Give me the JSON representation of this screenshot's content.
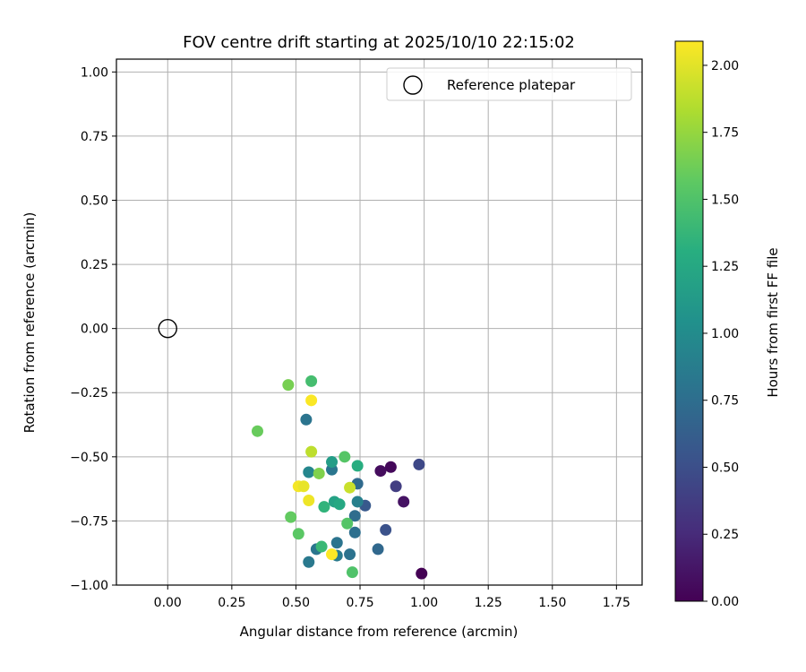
{
  "chart_data": {
    "type": "scatter",
    "title": "FOV centre drift starting at 2025/10/10 22:15:02",
    "xlabel": "Angular distance from reference (arcmin)",
    "ylabel": "Rotation from reference (arcmin)",
    "xlim": [
      -0.2,
      1.85
    ],
    "ylim": [
      -1.0,
      1.05
    ],
    "xticks": [
      0.0,
      0.25,
      0.5,
      0.75,
      1.0,
      1.25,
      1.5,
      1.75
    ],
    "xtick_labels": [
      "0.00",
      "0.25",
      "0.50",
      "0.75",
      "1.00",
      "1.25",
      "1.50",
      "1.75"
    ],
    "yticks": [
      1.0,
      0.75,
      0.5,
      0.25,
      0.0,
      -0.25,
      -0.5,
      -0.75,
      -1.0
    ],
    "ytick_labels": [
      "1.00",
      "0.75",
      "0.50",
      "0.25",
      "0.00",
      "−0.25",
      "−0.50",
      "−0.75",
      "−1.00"
    ],
    "grid": true,
    "legend": {
      "position": "top-right",
      "entries": [
        "Reference platepar"
      ]
    },
    "reference_point": {
      "x": 0.0,
      "y": 0.0
    },
    "colorbar": {
      "label": "Hours from first FF file",
      "min": 0.0,
      "max": 2.09,
      "ticks": [
        0.0,
        0.25,
        0.5,
        0.75,
        1.0,
        1.25,
        1.5,
        1.75,
        2.0
      ],
      "tick_labels": [
        "0.00",
        "0.25",
        "0.50",
        "0.75",
        "1.00",
        "1.25",
        "1.50",
        "1.75",
        "2.00"
      ],
      "colormap": "viridis"
    },
    "points": [
      {
        "x": 0.99,
        "y": -0.955,
        "h": 0.0
      },
      {
        "x": 0.87,
        "y": -0.54,
        "h": 0.04
      },
      {
        "x": 0.83,
        "y": -0.555,
        "h": 0.07
      },
      {
        "x": 0.92,
        "y": -0.675,
        "h": 0.1
      },
      {
        "x": 0.89,
        "y": -0.615,
        "h": 0.38
      },
      {
        "x": 0.98,
        "y": -0.53,
        "h": 0.45
      },
      {
        "x": 0.85,
        "y": -0.785,
        "h": 0.52
      },
      {
        "x": 0.77,
        "y": -0.69,
        "h": 0.58
      },
      {
        "x": 0.82,
        "y": -0.86,
        "h": 0.7
      },
      {
        "x": 0.74,
        "y": -0.605,
        "h": 0.72
      },
      {
        "x": 0.73,
        "y": -0.73,
        "h": 0.74
      },
      {
        "x": 0.73,
        "y": -0.795,
        "h": 0.76
      },
      {
        "x": 0.71,
        "y": -0.88,
        "h": 0.78
      },
      {
        "x": 0.66,
        "y": -0.835,
        "h": 0.8
      },
      {
        "x": 0.54,
        "y": -0.355,
        "h": 0.8
      },
      {
        "x": 0.64,
        "y": -0.55,
        "h": 0.82
      },
      {
        "x": 0.58,
        "y": -0.86,
        "h": 0.82
      },
      {
        "x": 0.55,
        "y": -0.91,
        "h": 0.84
      },
      {
        "x": 0.66,
        "y": -0.885,
        "h": 0.85
      },
      {
        "x": 0.74,
        "y": -0.675,
        "h": 0.9
      },
      {
        "x": 0.55,
        "y": -0.56,
        "h": 0.95
      },
      {
        "x": 0.64,
        "y": -0.52,
        "h": 1.15
      },
      {
        "x": 0.65,
        "y": -0.675,
        "h": 1.2
      },
      {
        "x": 0.67,
        "y": -0.685,
        "h": 1.25
      },
      {
        "x": 0.74,
        "y": -0.535,
        "h": 1.3
      },
      {
        "x": 0.61,
        "y": -0.695,
        "h": 1.35
      },
      {
        "x": 0.6,
        "y": -0.85,
        "h": 1.4
      },
      {
        "x": 0.56,
        "y": -0.205,
        "h": 1.45
      },
      {
        "x": 0.72,
        "y": -0.95,
        "h": 1.5
      },
      {
        "x": 0.7,
        "y": -0.76,
        "h": 1.52
      },
      {
        "x": 0.69,
        "y": -0.5,
        "h": 1.53
      },
      {
        "x": 0.51,
        "y": -0.8,
        "h": 1.55
      },
      {
        "x": 0.35,
        "y": -0.4,
        "h": 1.6
      },
      {
        "x": 0.48,
        "y": -0.735,
        "h": 1.58
      },
      {
        "x": 0.59,
        "y": -0.565,
        "h": 1.68
      },
      {
        "x": 0.47,
        "y": -0.22,
        "h": 1.65
      },
      {
        "x": 0.56,
        "y": -0.48,
        "h": 1.88
      },
      {
        "x": 0.71,
        "y": -0.62,
        "h": 1.92
      },
      {
        "x": 0.56,
        "y": -0.28,
        "h": 2.08
      },
      {
        "x": 0.51,
        "y": -0.615,
        "h": 2.06
      },
      {
        "x": 0.53,
        "y": -0.615,
        "h": 2.02
      },
      {
        "x": 0.55,
        "y": -0.67,
        "h": 2.04
      },
      {
        "x": 0.64,
        "y": -0.88,
        "h": 2.09
      }
    ]
  }
}
